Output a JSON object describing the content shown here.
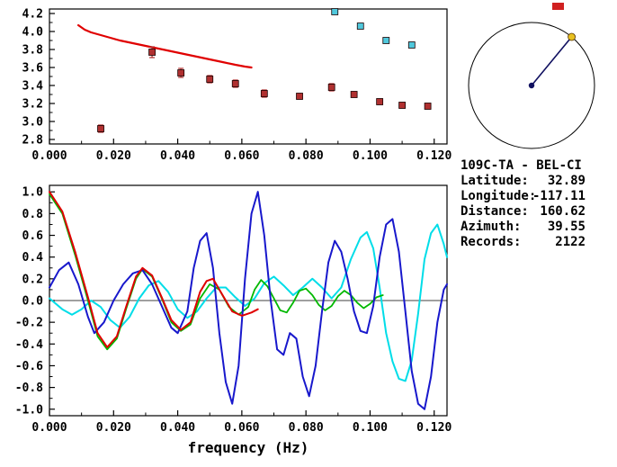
{
  "window": {
    "bg": "#ffffff",
    "accent_red": "#e00000"
  },
  "station_panel": {
    "title": "109C-TA - BEL-CI",
    "fields": [
      {
        "label": "Latitude:",
        "value": "32.89"
      },
      {
        "label": "Longitude:",
        "value": "-117.11"
      },
      {
        "label": "Distance:",
        "value": "160.62"
      },
      {
        "label": "Azimuth:",
        "value": "39.55"
      },
      {
        "label": "Records:",
        "value": "2122"
      }
    ],
    "compass": {
      "azimuth_deg": 39.55,
      "line_color": "#101060",
      "center_dot_color": "#101060",
      "end_dot_color": "#e8c020"
    }
  },
  "chart_data": [
    {
      "type": "scatter",
      "title": "",
      "xlabel": "",
      "ylabel": "",
      "xlim": [
        0,
        0.124
      ],
      "ylim": [
        2.75,
        4.25
      ],
      "grid": false,
      "x_ticks": [
        0.0,
        0.02,
        0.04,
        0.06,
        0.08,
        0.1,
        0.12
      ],
      "x_tick_labels": [
        "0.000",
        "0.020",
        "0.040",
        "0.060",
        "0.080",
        "0.100",
        "0.120"
      ],
      "y_ticks": [
        2.8,
        3.0,
        3.2,
        3.4,
        3.6,
        3.8,
        4.0,
        4.2
      ],
      "y_tick_labels": [
        "2.8",
        "3.0",
        "3.2",
        "3.4",
        "3.6",
        "3.8",
        "4.0",
        "4.2"
      ],
      "zero_line": false,
      "series": [
        {
          "name": "model-dispersion-curve",
          "mode": "line",
          "color": "#e00000",
          "width": 2.2,
          "points": [
            [
              0.009,
              4.07
            ],
            [
              0.011,
              4.02
            ],
            [
              0.013,
              3.99
            ],
            [
              0.016,
              3.96
            ],
            [
              0.019,
              3.93
            ],
            [
              0.022,
              3.9
            ],
            [
              0.026,
              3.87
            ],
            [
              0.03,
              3.84
            ],
            [
              0.034,
              3.81
            ],
            [
              0.038,
              3.78
            ],
            [
              0.042,
              3.75
            ],
            [
              0.046,
              3.72
            ],
            [
              0.05,
              3.69
            ],
            [
              0.054,
              3.66
            ],
            [
              0.058,
              3.63
            ],
            [
              0.061,
              3.61
            ],
            [
              0.063,
              3.6
            ]
          ]
        },
        {
          "name": "group-velocity-point",
          "mode": "squares",
          "color": "#b03030",
          "points": [
            [
              0.016,
              2.92,
              0.04
            ],
            [
              0.032,
              3.77,
              0.06
            ],
            [
              0.041,
              3.54,
              0.05
            ],
            [
              0.05,
              3.47,
              0.04
            ],
            [
              0.058,
              3.42,
              0.04
            ],
            [
              0.067,
              3.31,
              0.04
            ],
            [
              0.078,
              3.28,
              0.03
            ],
            [
              0.088,
              3.38,
              0.04
            ],
            [
              0.095,
              3.3,
              0.03
            ],
            [
              0.103,
              3.22,
              0.03
            ],
            [
              0.11,
              3.18,
              0.03
            ],
            [
              0.118,
              3.17,
              0.03
            ]
          ]
        },
        {
          "name": "phase-velocity-point",
          "mode": "squares",
          "color": "#50c8dc",
          "points": [
            [
              0.089,
              4.22
            ],
            [
              0.097,
              4.06
            ],
            [
              0.105,
              3.9
            ],
            [
              0.113,
              3.85
            ]
          ]
        }
      ]
    },
    {
      "type": "line",
      "title": "",
      "xlabel": "frequency (Hz)",
      "ylabel": "",
      "xlim": [
        0,
        0.124
      ],
      "ylim": [
        -1.06,
        1.06
      ],
      "grid": false,
      "x_ticks": [
        0.0,
        0.02,
        0.04,
        0.06,
        0.08,
        0.1,
        0.12
      ],
      "x_tick_labels": [
        "0.000",
        "0.020",
        "0.040",
        "0.060",
        "0.080",
        "0.100",
        "0.120"
      ],
      "y_ticks": [
        -1.0,
        -0.8,
        -0.6,
        -0.4,
        -0.2,
        0.0,
        0.2,
        0.4,
        0.6,
        0.8,
        1.0
      ],
      "y_tick_labels": [
        "-1.0",
        "-0.8",
        "-0.6",
        "-0.4",
        "-0.2",
        "0.0",
        "0.2",
        "0.4",
        "0.6",
        "0.8",
        "1.0"
      ],
      "zero_line": true,
      "series": [
        {
          "name": "cyan-waveform",
          "mode": "line",
          "color": "#00dde8",
          "width": 2,
          "points": [
            [
              0,
              0.02
            ],
            [
              0.004,
              -0.08
            ],
            [
              0.007,
              -0.13
            ],
            [
              0.01,
              -0.08
            ],
            [
              0.013,
              0.0
            ],
            [
              0.016,
              -0.06
            ],
            [
              0.019,
              -0.18
            ],
            [
              0.022,
              -0.25
            ],
            [
              0.025,
              -0.15
            ],
            [
              0.028,
              0.02
            ],
            [
              0.031,
              0.14
            ],
            [
              0.034,
              0.18
            ],
            [
              0.037,
              0.08
            ],
            [
              0.04,
              -0.08
            ],
            [
              0.043,
              -0.16
            ],
            [
              0.046,
              -0.1
            ],
            [
              0.049,
              0.02
            ],
            [
              0.052,
              0.12
            ],
            [
              0.055,
              0.12
            ],
            [
              0.058,
              0.03
            ],
            [
              0.061,
              -0.05
            ],
            [
              0.064,
              0.02
            ],
            [
              0.067,
              0.16
            ],
            [
              0.07,
              0.22
            ],
            [
              0.073,
              0.14
            ],
            [
              0.076,
              0.05
            ],
            [
              0.079,
              0.12
            ],
            [
              0.082,
              0.2
            ],
            [
              0.085,
              0.12
            ],
            [
              0.088,
              0.02
            ],
            [
              0.091,
              0.12
            ],
            [
              0.094,
              0.38
            ],
            [
              0.097,
              0.58
            ],
            [
              0.099,
              0.63
            ],
            [
              0.101,
              0.48
            ],
            [
              0.103,
              0.12
            ],
            [
              0.105,
              -0.3
            ],
            [
              0.107,
              -0.56
            ],
            [
              0.109,
              -0.72
            ],
            [
              0.111,
              -0.74
            ],
            [
              0.113,
              -0.55
            ],
            [
              0.115,
              -0.12
            ],
            [
              0.117,
              0.38
            ],
            [
              0.119,
              0.62
            ],
            [
              0.121,
              0.7
            ],
            [
              0.123,
              0.52
            ],
            [
              0.124,
              0.4
            ]
          ]
        },
        {
          "name": "green-waveform",
          "mode": "line",
          "color": "#00b800",
          "width": 1.8,
          "points": [
            [
              0,
              0.98
            ],
            [
              0.004,
              0.8
            ],
            [
              0.008,
              0.42
            ],
            [
              0.012,
              0.0
            ],
            [
              0.015,
              -0.33
            ],
            [
              0.018,
              -0.45
            ],
            [
              0.021,
              -0.35
            ],
            [
              0.024,
              -0.07
            ],
            [
              0.027,
              0.2
            ],
            [
              0.029,
              0.29
            ],
            [
              0.032,
              0.22
            ],
            [
              0.035,
              0.02
            ],
            [
              0.038,
              -0.2
            ],
            [
              0.041,
              -0.28
            ],
            [
              0.044,
              -0.22
            ],
            [
              0.047,
              0.02
            ],
            [
              0.05,
              0.15
            ],
            [
              0.053,
              0.1
            ],
            [
              0.056,
              -0.06
            ],
            [
              0.059,
              -0.13
            ],
            [
              0.062,
              -0.06
            ],
            [
              0.064,
              0.1
            ],
            [
              0.066,
              0.19
            ],
            [
              0.068,
              0.13
            ],
            [
              0.07,
              0.02
            ],
            [
              0.072,
              -0.09
            ],
            [
              0.074,
              -0.11
            ],
            [
              0.076,
              -0.02
            ],
            [
              0.078,
              0.09
            ],
            [
              0.08,
              0.11
            ],
            [
              0.082,
              0.05
            ],
            [
              0.084,
              -0.04
            ],
            [
              0.086,
              -0.09
            ],
            [
              0.088,
              -0.05
            ],
            [
              0.09,
              0.04
            ],
            [
              0.092,
              0.09
            ],
            [
              0.094,
              0.05
            ],
            [
              0.096,
              -0.02
            ],
            [
              0.098,
              -0.07
            ],
            [
              0.1,
              -0.03
            ],
            [
              0.102,
              0.03
            ],
            [
              0.104,
              0.05
            ]
          ]
        },
        {
          "name": "blue-waveform",
          "mode": "line",
          "color": "#1818cc",
          "width": 2,
          "points": [
            [
              0,
              0.12
            ],
            [
              0.003,
              0.28
            ],
            [
              0.006,
              0.35
            ],
            [
              0.009,
              0.15
            ],
            [
              0.012,
              -0.15
            ],
            [
              0.014,
              -0.3
            ],
            [
              0.017,
              -0.2
            ],
            [
              0.02,
              0.0
            ],
            [
              0.023,
              0.15
            ],
            [
              0.026,
              0.25
            ],
            [
              0.029,
              0.28
            ],
            [
              0.032,
              0.15
            ],
            [
              0.035,
              -0.05
            ],
            [
              0.038,
              -0.25
            ],
            [
              0.04,
              -0.3
            ],
            [
              0.043,
              -0.1
            ],
            [
              0.045,
              0.3
            ],
            [
              0.047,
              0.55
            ],
            [
              0.049,
              0.62
            ],
            [
              0.051,
              0.3
            ],
            [
              0.053,
              -0.3
            ],
            [
              0.055,
              -0.75
            ],
            [
              0.057,
              -0.95
            ],
            [
              0.059,
              -0.6
            ],
            [
              0.061,
              0.2
            ],
            [
              0.063,
              0.8
            ],
            [
              0.065,
              1.0
            ],
            [
              0.067,
              0.6
            ],
            [
              0.069,
              0.0
            ],
            [
              0.071,
              -0.45
            ],
            [
              0.073,
              -0.5
            ],
            [
              0.075,
              -0.3
            ],
            [
              0.077,
              -0.35
            ],
            [
              0.079,
              -0.7
            ],
            [
              0.081,
              -0.88
            ],
            [
              0.083,
              -0.6
            ],
            [
              0.085,
              -0.1
            ],
            [
              0.087,
              0.35
            ],
            [
              0.089,
              0.55
            ],
            [
              0.091,
              0.45
            ],
            [
              0.093,
              0.2
            ],
            [
              0.095,
              -0.1
            ],
            [
              0.097,
              -0.28
            ],
            [
              0.099,
              -0.3
            ],
            [
              0.101,
              -0.05
            ],
            [
              0.103,
              0.4
            ],
            [
              0.105,
              0.7
            ],
            [
              0.107,
              0.75
            ],
            [
              0.109,
              0.45
            ],
            [
              0.111,
              -0.1
            ],
            [
              0.113,
              -0.65
            ],
            [
              0.115,
              -0.95
            ],
            [
              0.117,
              -1.0
            ],
            [
              0.119,
              -0.7
            ],
            [
              0.121,
              -0.2
            ],
            [
              0.123,
              0.1
            ],
            [
              0.124,
              0.15
            ]
          ]
        },
        {
          "name": "red-waveform",
          "mode": "line",
          "color": "#e00000",
          "width": 2,
          "points": [
            [
              0,
              1.0
            ],
            [
              0.004,
              0.82
            ],
            [
              0.008,
              0.45
            ],
            [
              0.012,
              0.03
            ],
            [
              0.015,
              -0.3
            ],
            [
              0.018,
              -0.43
            ],
            [
              0.021,
              -0.33
            ],
            [
              0.024,
              -0.05
            ],
            [
              0.027,
              0.22
            ],
            [
              0.029,
              0.3
            ],
            [
              0.032,
              0.23
            ],
            [
              0.035,
              0.03
            ],
            [
              0.038,
              -0.18
            ],
            [
              0.041,
              -0.27
            ],
            [
              0.044,
              -0.2
            ],
            [
              0.047,
              0.08
            ],
            [
              0.049,
              0.18
            ],
            [
              0.051,
              0.2
            ],
            [
              0.054,
              0.05
            ],
            [
              0.057,
              -0.1
            ],
            [
              0.06,
              -0.14
            ],
            [
              0.063,
              -0.11
            ],
            [
              0.065,
              -0.08
            ]
          ]
        }
      ]
    }
  ]
}
